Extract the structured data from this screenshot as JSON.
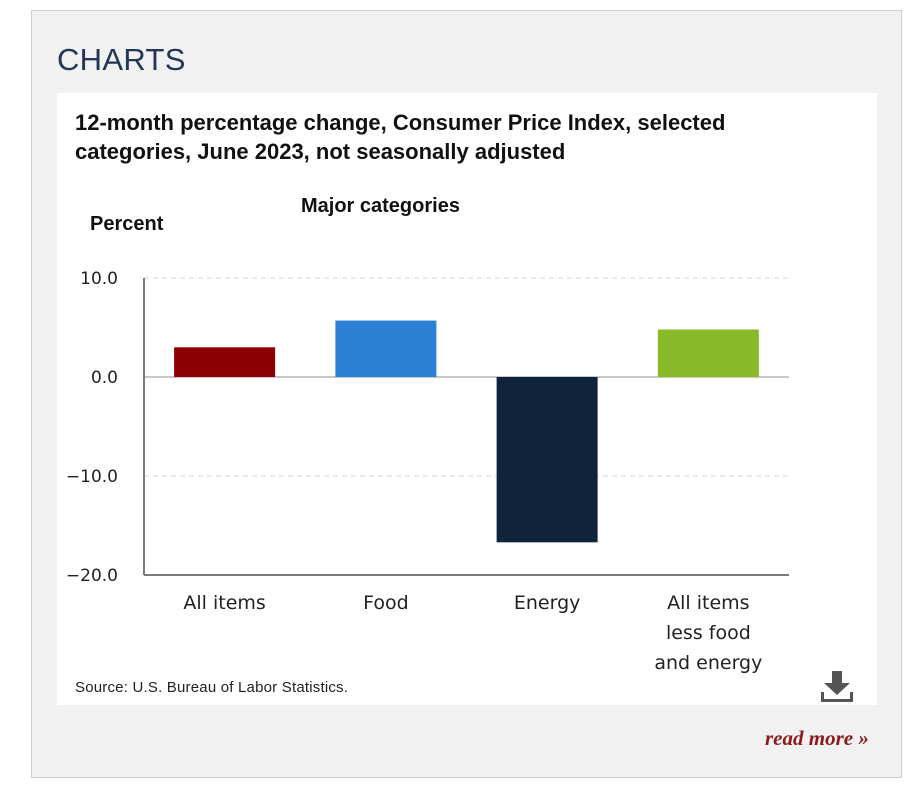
{
  "section": {
    "title": "CHARTS"
  },
  "chart_data": {
    "type": "bar",
    "title": "12-month percentage change, Consumer Price Index, selected categories, June 2023, not seasonally adjusted",
    "subtitle": "Major categories",
    "ylabel": "Percent",
    "xlabel": "",
    "categories": [
      [
        "All items"
      ],
      [
        "Food"
      ],
      [
        "Energy"
      ],
      [
        "All items",
        "less food",
        "and energy"
      ]
    ],
    "values": [
      3.0,
      5.7,
      -16.7,
      4.8
    ],
    "colors": [
      "#8b0000",
      "#2e7fd6",
      "#0f233a",
      "#87b928"
    ],
    "ylim": [
      -20,
      10
    ],
    "yticks": [
      10,
      0,
      -10,
      -20
    ],
    "ytick_labels": [
      "10.0",
      "0.0",
      "−10.0",
      "−20.0"
    ],
    "grid": true,
    "source": "Source: U.S. Bureau of Labor Statistics."
  },
  "actions": {
    "download_icon": "download-icon",
    "read_more": "read more »"
  }
}
